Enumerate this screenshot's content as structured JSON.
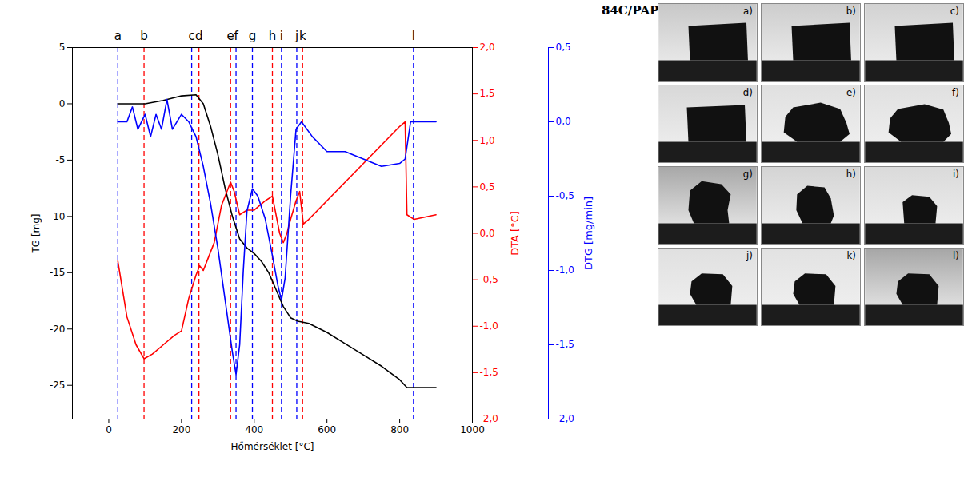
{
  "chart_data": {
    "type": "line",
    "xlabel": "Hőmérséklet [°C]",
    "ylabel": "TG [mg]",
    "y2label": "DTA [°C]",
    "y3label": "DTG [mg/min]",
    "xlim": [
      -100,
      1000
    ],
    "xticks": [
      0,
      200,
      400,
      600,
      800,
      1000
    ],
    "ylim": [
      -28,
      5
    ],
    "yticks": [
      -25,
      -20,
      -15,
      -10,
      -5,
      0,
      5
    ],
    "y2lim": [
      -2.0,
      2.0
    ],
    "y2ticks": [
      {
        "value": -2.0,
        "label": "-2,0"
      },
      {
        "value": -1.5,
        "label": "-1,5"
      },
      {
        "value": -1.0,
        "label": "-1,0"
      },
      {
        "value": -0.5,
        "label": "-0,5"
      },
      {
        "value": 0.0,
        "label": "0,0"
      },
      {
        "value": 0.5,
        "label": "0,5"
      },
      {
        "value": 1.0,
        "label": "1,0"
      },
      {
        "value": 1.5,
        "label": "1,5"
      },
      {
        "value": 2.0,
        "label": "2,0"
      }
    ],
    "y3lim": [
      -2.0,
      0.5
    ],
    "y3ticks": [
      {
        "value": -2.0,
        "label": "-2,0"
      },
      {
        "value": -1.5,
        "label": "-1,5"
      },
      {
        "value": -1.0,
        "label": "-1,0"
      },
      {
        "value": -0.5,
        "label": "-0,5"
      },
      {
        "value": 0.0,
        "label": "0,0"
      },
      {
        "value": 0.5,
        "label": "0,5"
      }
    ],
    "series": [
      {
        "axis": "y",
        "color": "#000000",
        "x": [
          25,
          100,
          150,
          200,
          240,
          260,
          280,
          300,
          320,
          340,
          360,
          380,
          400,
          420,
          440,
          460,
          480,
          500,
          520,
          550,
          600,
          650,
          700,
          750,
          800,
          820,
          900
        ],
        "values": [
          0,
          0,
          0.3,
          0.7,
          0.8,
          0,
          -2,
          -4.5,
          -7.5,
          -10,
          -12,
          -12.8,
          -13.3,
          -14,
          -15,
          -16.5,
          -18,
          -19,
          -19.3,
          -19.5,
          -20.3,
          -21.3,
          -22.3,
          -23.3,
          -24.5,
          -25.2,
          -25.2
        ]
      },
      {
        "axis": "y2",
        "color": "#ff0000",
        "x": [
          25,
          50,
          75,
          97,
          120,
          150,
          180,
          200,
          220,
          240,
          250,
          260,
          270,
          290,
          310,
          335,
          345,
          360,
          380,
          400,
          430,
          450,
          470,
          480,
          490,
          500,
          515,
          525,
          535,
          550,
          600,
          650,
          700,
          750,
          800,
          815,
          820,
          840,
          900
        ],
        "values": [
          -0.3,
          -0.9,
          -1.2,
          -1.35,
          -1.3,
          -1.2,
          -1.1,
          -1.05,
          -0.7,
          -0.45,
          -0.35,
          -0.4,
          -0.3,
          -0.1,
          0.3,
          0.55,
          0.45,
          0.2,
          0.25,
          0.25,
          0.35,
          0.4,
          0.0,
          -0.1,
          0.0,
          0.15,
          0.35,
          0.45,
          0.1,
          0.15,
          0.35,
          0.55,
          0.75,
          0.95,
          1.15,
          1.2,
          0.2,
          0.15,
          0.2
        ]
      },
      {
        "axis": "y3",
        "color": "#0000ff",
        "x": [
          25,
          50,
          65,
          80,
          100,
          115,
          130,
          145,
          160,
          175,
          200,
          220,
          240,
          260,
          280,
          300,
          320,
          340,
          350,
          360,
          370,
          380,
          395,
          410,
          430,
          450,
          465,
          475,
          485,
          500,
          515,
          530,
          560,
          600,
          650,
          700,
          750,
          800,
          815,
          830,
          850,
          900
        ],
        "values": [
          0,
          0,
          0.1,
          -0.05,
          0.05,
          -0.1,
          0.05,
          -0.05,
          0.15,
          -0.05,
          0.05,
          0,
          -0.1,
          -0.3,
          -0.55,
          -0.85,
          -1.2,
          -1.55,
          -1.7,
          -1.5,
          -1.0,
          -0.6,
          -0.45,
          -0.5,
          -0.65,
          -0.9,
          -1.1,
          -1.2,
          -1.05,
          -0.5,
          -0.05,
          0,
          -0.1,
          -0.2,
          -0.2,
          -0.25,
          -0.3,
          -0.28,
          -0.25,
          0,
          0,
          0
        ]
      }
    ],
    "markers": [
      {
        "label": "a",
        "x": 25,
        "color": "#0000ff"
      },
      {
        "label": "b",
        "x": 97,
        "color": "#ff0000"
      },
      {
        "label": "c",
        "x": 228,
        "color": "#0000ff"
      },
      {
        "label": "d",
        "x": 248,
        "color": "#ff0000"
      },
      {
        "label": "e",
        "x": 335,
        "color": "#ff0000"
      },
      {
        "label": "f",
        "x": 350,
        "color": "#0000ff"
      },
      {
        "label": "g",
        "x": 395,
        "color": "#0000ff"
      },
      {
        "label": "h",
        "x": 450,
        "color": "#ff0000"
      },
      {
        "label": "i",
        "x": 475,
        "color": "#0000ff"
      },
      {
        "label": "j",
        "x": 517,
        "color": "#0000ff"
      },
      {
        "label": "k",
        "x": 533,
        "color": "#ff0000"
      },
      {
        "label": "l",
        "x": 838,
        "color": "#0000ff"
      }
    ]
  },
  "images": {
    "title": "84C/PAP",
    "panels": [
      "a)",
      "b)",
      "c)",
      "d)",
      "e)",
      "f)",
      "g)",
      "h)",
      "i)",
      "j)",
      "k)",
      "l)"
    ]
  }
}
